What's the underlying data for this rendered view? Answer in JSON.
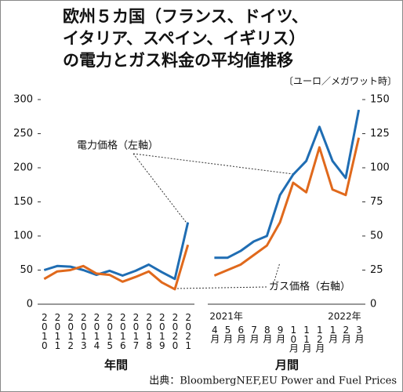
{
  "chart_data": {
    "type": "line",
    "title": [
      "欧州５カ国（フランス、ドイツ、",
      "イタリア、スペイン、イギリス）",
      "の電力とガス料金の平均値推移"
    ],
    "unit": "〔ユーロ／メガワット時〕",
    "ylim": [
      0,
      300
    ],
    "yticks": [
      0,
      50,
      100,
      150,
      200,
      250,
      300
    ],
    "y2lim": [
      0,
      150
    ],
    "y2ticks": [
      0,
      25,
      50,
      75,
      100,
      125,
      150
    ],
    "annotations": [
      "電力価格（左軸）",
      "ガス価格（右軸）"
    ],
    "source": "出典：BloombergNEF,EU Power and Fuel Prices",
    "panels": [
      {
        "xlabel": "年間",
        "categories": [
          "2010",
          "2011",
          "2012",
          "2013",
          "2014",
          "2015",
          "2016",
          "2017",
          "2018",
          "2019",
          "2020",
          "2021"
        ],
        "series": [
          {
            "name": "電力価格",
            "color": "#1f6db3",
            "axis": "y",
            "values": [
              50,
              56,
              55,
              50,
              43,
              49,
              42,
              49,
              58,
              47,
              37,
              120
            ]
          },
          {
            "name": "ガス価格",
            "color": "#e0691c",
            "axis": "y2",
            "values": [
              18.5,
              24,
              25,
              28,
              22.5,
              21.5,
              16.5,
              20,
              24,
              16,
              11,
              43.5
            ]
          }
        ]
      },
      {
        "xlabel": "月間",
        "year_labels": [
          "2021年",
          "2022年"
        ],
        "categories": [
          "4月",
          "5月",
          "6月",
          "7月",
          "8月",
          "9月",
          "10月",
          "11月",
          "12月",
          "1月",
          "2月",
          "3月"
        ],
        "series": [
          {
            "name": "電力価格",
            "color": "#1f6db3",
            "axis": "y",
            "values": [
              68,
              68,
              78,
              92,
              100,
              160,
              190,
              210,
              260,
              210,
              185,
              285
            ]
          },
          {
            "name": "ガス価格",
            "color": "#e0691c",
            "axis": "y2",
            "values": [
              21,
              25,
              29,
              36,
              43,
              60,
              89,
              82,
              115,
              84,
              80,
              122
            ]
          }
        ]
      }
    ]
  }
}
